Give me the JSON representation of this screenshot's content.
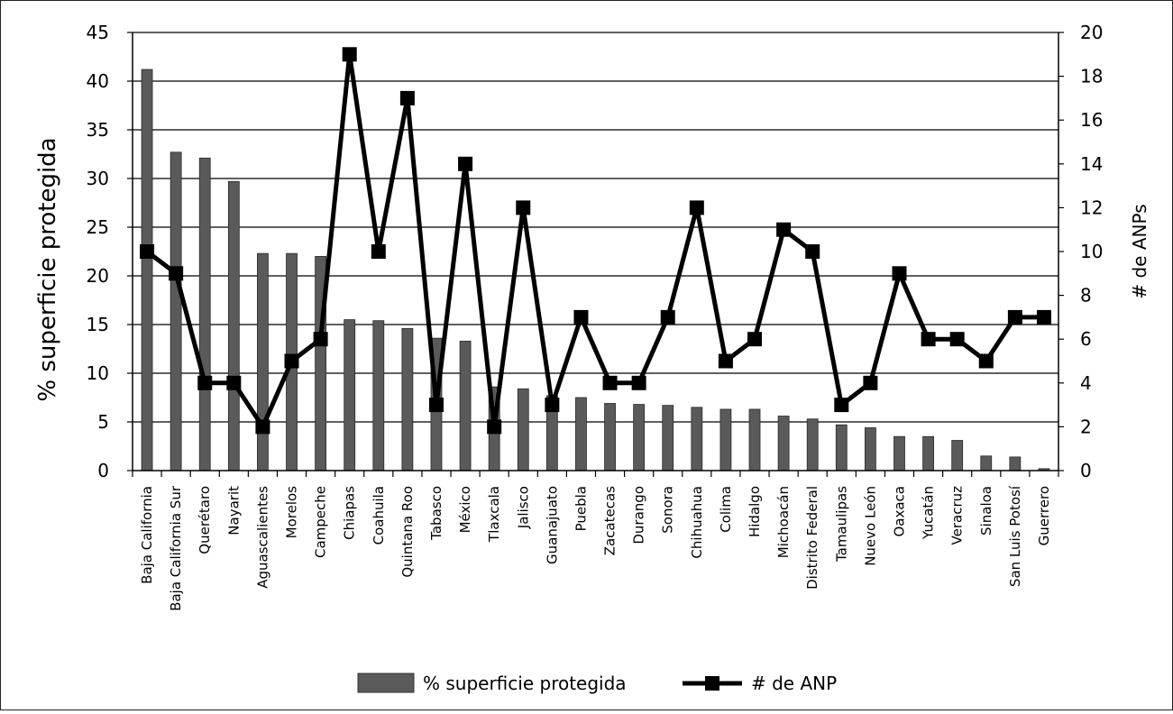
{
  "chart_data": {
    "type": "bar",
    "categories": [
      "Baja California",
      "Baja California Sur",
      "Querétaro",
      "Nayarit",
      "Aguascalientes",
      "Morelos",
      "Campeche",
      "Chiapas",
      "Coahuila",
      "Quintana Roo",
      "Tabasco",
      "México",
      "Tlaxcala",
      "Jalisco",
      "Guanajuato",
      "Puebla",
      "Zacatecas",
      "Durango",
      "Sonora",
      "Chihuahua",
      "Colima",
      "Hidalgo",
      "Michoacán",
      "Distrito Federal",
      "Tamaulipas",
      "Nuevo León",
      "Oaxaca",
      "Yucatán",
      "Veracruz",
      "Sinaloa",
      "San Luis Potosí",
      "Guerrero"
    ],
    "series": [
      {
        "name": "% superficie protegida",
        "type": "bar",
        "axis": "left",
        "color": "#5a5a5a",
        "values": [
          41.2,
          32.7,
          32.1,
          29.7,
          22.3,
          22.3,
          22.0,
          15.5,
          15.4,
          14.6,
          13.6,
          13.3,
          8.6,
          8.4,
          7.7,
          7.5,
          6.9,
          6.8,
          6.7,
          6.5,
          6.3,
          6.3,
          5.6,
          5.3,
          4.7,
          4.4,
          3.5,
          3.5,
          3.1,
          1.5,
          1.4,
          0.2
        ]
      },
      {
        "name": "# de ANP",
        "type": "line",
        "axis": "right",
        "color": "#000000",
        "values": [
          10,
          9,
          4,
          4,
          2,
          5,
          6,
          19,
          10,
          17,
          3,
          14,
          2,
          12,
          3,
          7,
          4,
          4,
          7,
          12,
          5,
          6,
          11,
          10,
          3,
          4,
          9,
          6,
          6,
          5,
          7,
          7
        ]
      }
    ],
    "ylabel": "% superficie protegida",
    "y2label": "# de ANPs",
    "ylim": [
      0,
      45
    ],
    "y2lim": [
      0,
      20
    ],
    "yticks": [
      0,
      5,
      10,
      15,
      20,
      25,
      30,
      35,
      40,
      45
    ],
    "y2ticks": [
      0,
      2,
      4,
      6,
      8,
      10,
      12,
      14,
      16,
      18,
      20
    ],
    "grid": true,
    "legend_position": "bottom"
  }
}
